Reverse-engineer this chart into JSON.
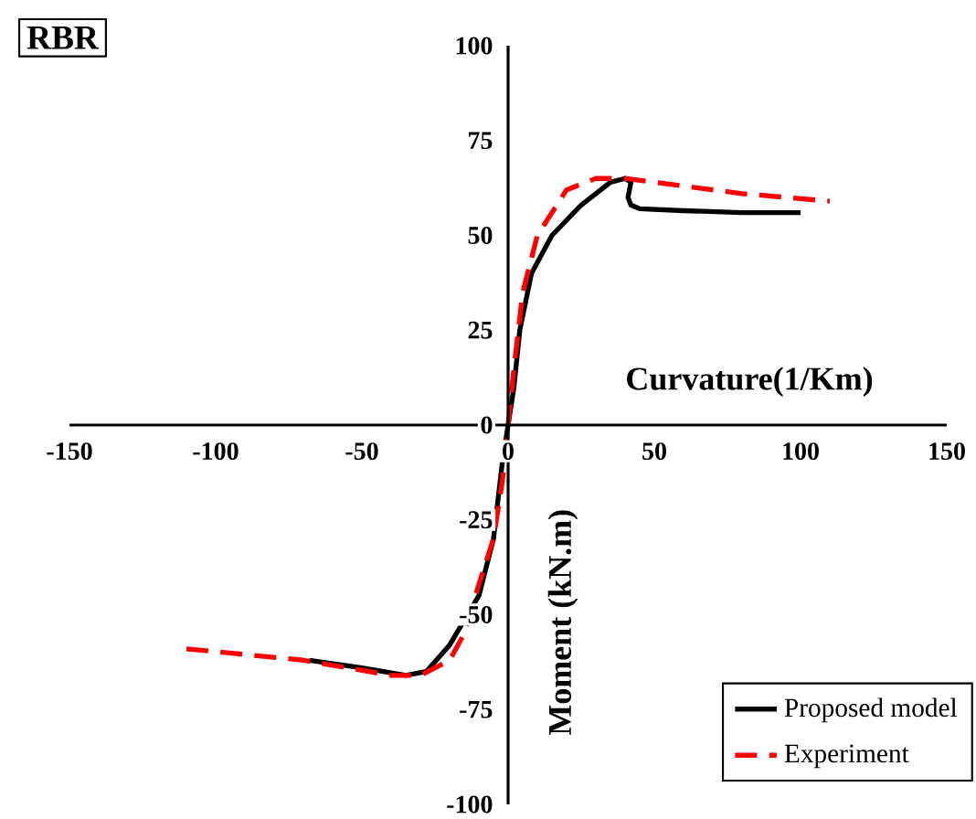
{
  "chart_data": {
    "type": "line",
    "xlabel": "Curvature(1/Km)",
    "ylabel": "Moment (kN.m)",
    "annotations": [
      "RBR"
    ],
    "xlim": [
      -150,
      150
    ],
    "ylim": [
      -100,
      100
    ],
    "xticks": [
      -150,
      -100,
      -50,
      0,
      50,
      100,
      150
    ],
    "yticks": [
      -100,
      -75,
      -50,
      -25,
      0,
      25,
      50,
      75,
      100
    ],
    "legend": "bottom right",
    "series": [
      {
        "name": "Proposed model",
        "color": "#000000",
        "line_style": "solid",
        "x": [
          -68,
          -50,
          -35,
          -28,
          -20,
          -10,
          -5,
          -2,
          0,
          2,
          4,
          8,
          15,
          25,
          35,
          40,
          42,
          41,
          42,
          45,
          60,
          80,
          100
        ],
        "values": [
          -62,
          -64,
          -66,
          -65,
          -58,
          -45,
          -30,
          -10,
          0,
          10,
          25,
          40,
          50,
          58,
          64,
          65,
          64,
          60,
          58,
          57,
          56.5,
          56,
          56
        ]
      },
      {
        "name": "Experiment",
        "color": "#ff0000",
        "line_style": "dashed",
        "x": [
          -110,
          -70,
          -40,
          -30,
          -20,
          -15,
          -10,
          -5,
          -2,
          0,
          2,
          5,
          10,
          20,
          30,
          40,
          60,
          80,
          110
        ],
        "values": [
          -59,
          -62,
          -66,
          -66,
          -62,
          -55,
          -42,
          -30,
          -15,
          0,
          15,
          35,
          50,
          62,
          65,
          65,
          63,
          61,
          59
        ]
      }
    ]
  }
}
